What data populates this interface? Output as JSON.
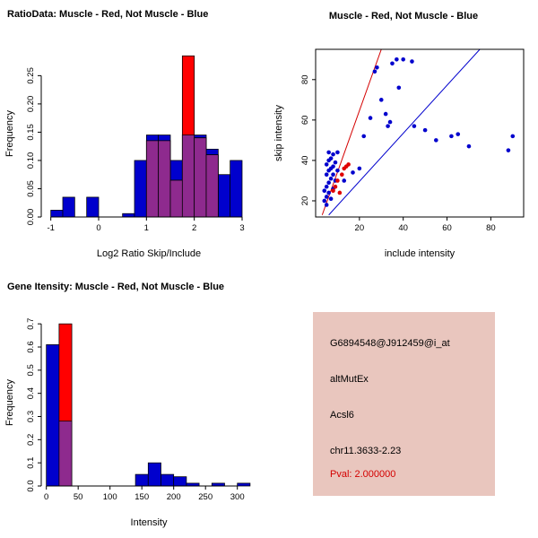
{
  "chart_data": [
    {
      "id": "ratio_hist",
      "type": "bar",
      "title": "RatioData: Muscle - Red, Not Muscle - Blue",
      "xlabel": "Log2 Ratio Skip/Include",
      "ylabel": "Frequency",
      "xlim": [
        -1.2,
        3.3
      ],
      "ylim": [
        0,
        0.295
      ],
      "xticks": [
        -1,
        0,
        1,
        2,
        3
      ],
      "xtick_labels": [
        "-1",
        "0",
        "1",
        "2",
        "3"
      ],
      "yticks": [
        0,
        0.05,
        0.1,
        0.15,
        0.2,
        0.25
      ],
      "ytick_labels": [
        "0.00",
        "0.05",
        "0.10",
        "0.15",
        "0.20",
        "0.25"
      ],
      "box": false,
      "bin_width": 0.25,
      "overlap_color": "#8e2a8e",
      "series": [
        {
          "name": "Not Muscle",
          "color": "#0000cd",
          "bars": [
            [
              -1,
              -0.75,
              0.012
            ],
            [
              -0.75,
              -0.5,
              0.035
            ],
            [
              -0.25,
              0,
              0.035
            ],
            [
              0.5,
              0.75,
              0.006
            ],
            [
              0.75,
              1,
              0.1
            ],
            [
              1,
              1.25,
              0.145
            ],
            [
              1.25,
              1.5,
              0.145
            ],
            [
              1.5,
              1.75,
              0.1
            ],
            [
              1.75,
              2,
              0.145
            ],
            [
              2,
              2.25,
              0.145
            ],
            [
              2.25,
              2.5,
              0.12
            ],
            [
              2.5,
              2.75,
              0.075
            ],
            [
              2.75,
              3,
              0.1
            ]
          ]
        },
        {
          "name": "Muscle",
          "color": "#ff0000",
          "bars": [
            [
              1,
              1.25,
              0.135
            ],
            [
              1.25,
              1.5,
              0.135
            ],
            [
              1.5,
              1.75,
              0.065
            ],
            [
              1.75,
              2,
              0.285
            ],
            [
              2,
              2.25,
              0.14
            ],
            [
              2.25,
              2.5,
              0.11
            ]
          ]
        }
      ]
    },
    {
      "id": "scatter",
      "type": "scatter",
      "title": "Muscle - Red, Not Muscle - Blue",
      "xlabel": "include intensity",
      "ylabel": "skip intensity",
      "xlim": [
        0,
        95
      ],
      "ylim": [
        12,
        95
      ],
      "xticks": [
        20,
        40,
        60,
        80
      ],
      "xtick_labels": [
        "20",
        "40",
        "60",
        "80"
      ],
      "yticks": [
        20,
        40,
        60,
        80
      ],
      "ytick_labels": [
        "20",
        "40",
        "60",
        "80"
      ],
      "box": true,
      "series": [
        {
          "name": "Not Muscle",
          "color": "#0000cd",
          "points": [
            [
              4,
              20
            ],
            [
              5,
              18
            ],
            [
              5,
              22
            ],
            [
              4,
              25
            ],
            [
              6,
              24
            ],
            [
              5,
              27
            ],
            [
              6,
              29
            ],
            [
              7,
              31
            ],
            [
              5,
              33
            ],
            [
              6,
              35
            ],
            [
              7,
              36
            ],
            [
              5,
              38
            ],
            [
              6,
              40
            ],
            [
              7,
              41
            ],
            [
              8,
              43
            ],
            [
              6,
              44
            ],
            [
              8,
              37
            ],
            [
              9,
              39
            ],
            [
              8,
              33
            ],
            [
              9,
              30
            ],
            [
              10,
              44
            ],
            [
              7,
              21
            ],
            [
              8,
              26
            ],
            [
              10,
              35
            ],
            [
              13,
              30
            ],
            [
              17,
              34
            ],
            [
              20,
              36
            ],
            [
              22,
              52
            ],
            [
              25,
              61
            ],
            [
              27,
              84
            ],
            [
              28,
              86
            ],
            [
              30,
              70
            ],
            [
              32,
              63
            ],
            [
              33,
              57
            ],
            [
              34,
              59
            ],
            [
              35,
              88
            ],
            [
              37,
              90
            ],
            [
              38,
              76
            ],
            [
              40,
              90
            ],
            [
              44,
              89
            ],
            [
              45,
              57
            ],
            [
              50,
              55
            ],
            [
              55,
              50
            ],
            [
              62,
              52
            ],
            [
              65,
              53
            ],
            [
              70,
              47
            ],
            [
              88,
              45
            ],
            [
              90,
              52
            ]
          ]
        },
        {
          "name": "Muscle",
          "color": "#e00000",
          "points": [
            [
              8,
              25
            ],
            [
              9,
              27
            ],
            [
              10,
              30
            ],
            [
              11,
              24
            ],
            [
              12,
              33
            ],
            [
              13,
              36
            ],
            [
              14,
              37
            ],
            [
              15,
              38
            ]
          ]
        }
      ],
      "lines": [
        {
          "name": "muscle-fit-line",
          "color": "#d40000",
          "x1": 3,
          "y1": 13,
          "x2": 30,
          "y2": 95
        },
        {
          "name": "not-muscle-fit-line",
          "color": "#0000cd",
          "x1": 6,
          "y1": 13,
          "x2": 75,
          "y2": 95
        }
      ]
    },
    {
      "id": "gene_hist",
      "type": "bar",
      "title": "Gene Itensity: Muscle - Red, Not Muscle - Blue",
      "xlabel": "Intensity",
      "ylabel": "Frequency",
      "xlim": [
        -8,
        330
      ],
      "ylim": [
        0,
        0.72
      ],
      "xticks": [
        0,
        50,
        100,
        150,
        200,
        250,
        300
      ],
      "xtick_labels": [
        "0",
        "50",
        "100",
        "150",
        "200",
        "250",
        "300"
      ],
      "yticks": [
        0,
        0.1,
        0.2,
        0.3,
        0.4,
        0.5,
        0.6,
        0.7
      ],
      "ytick_labels": [
        "0.0",
        "0.1",
        "0.2",
        "0.3",
        "0.4",
        "0.5",
        "0.6",
        "0.7"
      ],
      "box": false,
      "bin_width": 20,
      "overlap_color": "#8e2a8e",
      "series": [
        {
          "name": "Not Muscle",
          "color": "#0000cd",
          "bars": [
            [
              0,
              20,
              0.61
            ],
            [
              20,
              40,
              0.28
            ],
            [
              140,
              160,
              0.05
            ],
            [
              160,
              180,
              0.1
            ],
            [
              180,
              200,
              0.05
            ],
            [
              200,
              220,
              0.04
            ],
            [
              220,
              240,
              0.012
            ],
            [
              260,
              280,
              0.012
            ],
            [
              300,
              320,
              0.012
            ]
          ]
        },
        {
          "name": "Muscle",
          "color": "#ff0000",
          "bars": [
            [
              20,
              40,
              0.7
            ]
          ]
        }
      ]
    }
  ],
  "info_panel": {
    "bg": "#e9c6be",
    "lines": [
      {
        "text": "G6894548@J912459@i_at",
        "color": "#000000"
      },
      {
        "text": "altMutEx",
        "color": "#000000"
      },
      {
        "text": "Acsl6",
        "color": "#000000"
      },
      {
        "text": "chr11.3633-2.23",
        "color": "#000000"
      },
      {
        "text": "Pval: 2.000000",
        "color": "#d40000"
      }
    ]
  }
}
